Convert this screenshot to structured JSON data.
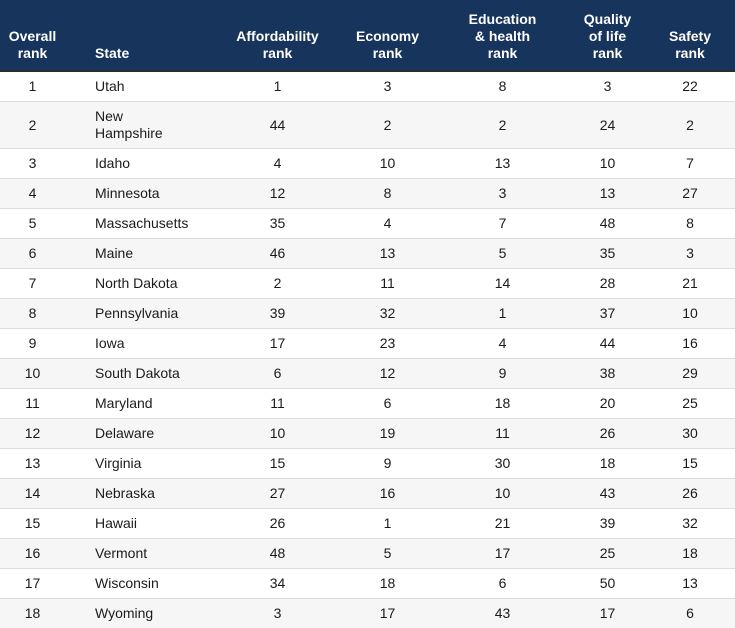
{
  "chart_data": {
    "type": "table",
    "columns": [
      "Overall\nrank",
      "State",
      "Affordability\nrank",
      "Economy\nrank",
      "Education\n& health\nrank",
      "Quality\nof life\nrank",
      "Safety\nrank"
    ],
    "rows": [
      {
        "overall_rank": "1",
        "state": "Utah",
        "affordability_rank": "1",
        "economy_rank": "3",
        "education_health_rank": "8",
        "quality_of_life_rank": "3",
        "safety_rank": "22"
      },
      {
        "overall_rank": "2",
        "state": "New\nHampshire",
        "affordability_rank": "44",
        "economy_rank": "2",
        "education_health_rank": "2",
        "quality_of_life_rank": "24",
        "safety_rank": "2"
      },
      {
        "overall_rank": "3",
        "state": "Idaho",
        "affordability_rank": "4",
        "economy_rank": "10",
        "education_health_rank": "13",
        "quality_of_life_rank": "10",
        "safety_rank": "7"
      },
      {
        "overall_rank": "4",
        "state": "Minnesota",
        "affordability_rank": "12",
        "economy_rank": "8",
        "education_health_rank": "3",
        "quality_of_life_rank": "13",
        "safety_rank": "27"
      },
      {
        "overall_rank": "5",
        "state": "Massachusetts",
        "affordability_rank": "35",
        "economy_rank": "4",
        "education_health_rank": "7",
        "quality_of_life_rank": "48",
        "safety_rank": "8"
      },
      {
        "overall_rank": "6",
        "state": "Maine",
        "affordability_rank": "46",
        "economy_rank": "13",
        "education_health_rank": "5",
        "quality_of_life_rank": "35",
        "safety_rank": "3"
      },
      {
        "overall_rank": "7",
        "state": "North Dakota",
        "affordability_rank": "2",
        "economy_rank": "11",
        "education_health_rank": "14",
        "quality_of_life_rank": "28",
        "safety_rank": "21"
      },
      {
        "overall_rank": "8",
        "state": "Pennsylvania",
        "affordability_rank": "39",
        "economy_rank": "32",
        "education_health_rank": "1",
        "quality_of_life_rank": "37",
        "safety_rank": "10"
      },
      {
        "overall_rank": "9",
        "state": "Iowa",
        "affordability_rank": "17",
        "economy_rank": "23",
        "education_health_rank": "4",
        "quality_of_life_rank": "44",
        "safety_rank": "16"
      },
      {
        "overall_rank": "10",
        "state": "South Dakota",
        "affordability_rank": "6",
        "economy_rank": "12",
        "education_health_rank": "9",
        "quality_of_life_rank": "38",
        "safety_rank": "29"
      },
      {
        "overall_rank": "11",
        "state": "Maryland",
        "affordability_rank": "11",
        "economy_rank": "6",
        "education_health_rank": "18",
        "quality_of_life_rank": "20",
        "safety_rank": "25"
      },
      {
        "overall_rank": "12",
        "state": "Delaware",
        "affordability_rank": "10",
        "economy_rank": "19",
        "education_health_rank": "11",
        "quality_of_life_rank": "26",
        "safety_rank": "30"
      },
      {
        "overall_rank": "13",
        "state": "Virginia",
        "affordability_rank": "15",
        "economy_rank": "9",
        "education_health_rank": "30",
        "quality_of_life_rank": "18",
        "safety_rank": "15"
      },
      {
        "overall_rank": "14",
        "state": "Nebraska",
        "affordability_rank": "27",
        "economy_rank": "16",
        "education_health_rank": "10",
        "quality_of_life_rank": "43",
        "safety_rank": "26"
      },
      {
        "overall_rank": "15",
        "state": "Hawaii",
        "affordability_rank": "26",
        "economy_rank": "1",
        "education_health_rank": "21",
        "quality_of_life_rank": "39",
        "safety_rank": "32"
      },
      {
        "overall_rank": "16",
        "state": "Vermont",
        "affordability_rank": "48",
        "economy_rank": "5",
        "education_health_rank": "17",
        "quality_of_life_rank": "25",
        "safety_rank": "18"
      },
      {
        "overall_rank": "17",
        "state": "Wisconsin",
        "affordability_rank": "34",
        "economy_rank": "18",
        "education_health_rank": "6",
        "quality_of_life_rank": "50",
        "safety_rank": "13"
      },
      {
        "overall_rank": "18",
        "state": "Wyoming",
        "affordability_rank": "3",
        "economy_rank": "17",
        "education_health_rank": "43",
        "quality_of_life_rank": "17",
        "safety_rank": "6"
      }
    ]
  },
  "colors": {
    "header_bg": "#17345C",
    "header_text": "#FFFFFF",
    "header_rule": "#2B2B2B",
    "row_alt_bg": "#F6F6F6",
    "row_border": "#DDDDDD",
    "body_text": "#1B1B1B"
  }
}
